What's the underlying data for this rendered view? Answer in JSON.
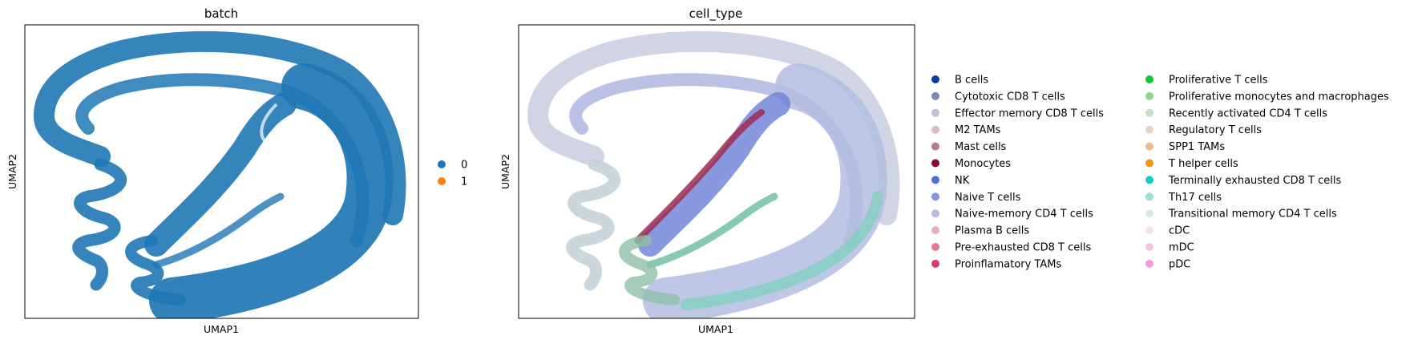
{
  "chart_data": [
    {
      "type": "scatter",
      "title": "batch",
      "xlabel": "UMAP1",
      "ylabel": "UMAP2",
      "grid": false,
      "ticks": false,
      "legend_position": "right",
      "legend": [
        {
          "label": "0",
          "color": "#1f77b4"
        },
        {
          "label": "1",
          "color": "#ff7f0e"
        }
      ]
    },
    {
      "type": "scatter",
      "title": "cell_type",
      "xlabel": "UMAP1",
      "ylabel": "UMAP2",
      "grid": false,
      "ticks": false,
      "legend_position": "right",
      "legend": [
        {
          "label": "B cells",
          "color": "#023fa5"
        },
        {
          "label": "Cytotoxic CD8 T cells",
          "color": "#7d87b9"
        },
        {
          "label": "Effector memory CD8 T cells",
          "color": "#bec1d4"
        },
        {
          "label": "M2 TAMs",
          "color": "#d6bcc0"
        },
        {
          "label": "Mast cells",
          "color": "#bb7784"
        },
        {
          "label": "Monocytes",
          "color": "#8e063b"
        },
        {
          "label": "NK",
          "color": "#4a6fe3"
        },
        {
          "label": "Naive T cells",
          "color": "#8595e1"
        },
        {
          "label": "Naive-memory CD4 T cells",
          "color": "#b5bbe3"
        },
        {
          "label": "Plasma B cells",
          "color": "#e6afb9"
        },
        {
          "label": "Pre-exhausted CD8 T cells",
          "color": "#e07b91"
        },
        {
          "label": "Proinflamatory TAMs",
          "color": "#d33f6a"
        },
        {
          "label": "Proliferative T cells",
          "color": "#11c638"
        },
        {
          "label": "Proliferative monocytes and macrophages",
          "color": "#8dd593"
        },
        {
          "label": "Recently activated CD4 T cells",
          "color": "#c6dec7"
        },
        {
          "label": "Regulatory T cells",
          "color": "#ead3c6"
        },
        {
          "label": "SPP1 TAMs",
          "color": "#f0b98d"
        },
        {
          "label": "T helper cells",
          "color": "#ef9708"
        },
        {
          "label": "Terminally exhausted CD8 T cells",
          "color": "#0fcfc0"
        },
        {
          "label": "Th17 cells",
          "color": "#9cded6"
        },
        {
          "label": "Transitional memory CD4 T cells",
          "color": "#d5eae7"
        },
        {
          "label": "cDC",
          "color": "#f3e1eb"
        },
        {
          "label": "mDC",
          "color": "#f6c4e1"
        },
        {
          "label": "pDC",
          "color": "#f79cd4"
        }
      ]
    }
  ]
}
